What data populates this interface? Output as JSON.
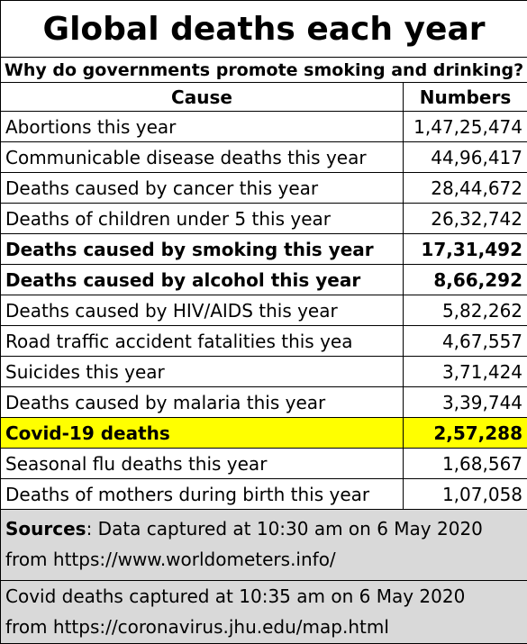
{
  "title": "Global deaths each year",
  "subtitle": "Why do governments promote smoking and drinking?",
  "columns": {
    "cause": "Cause",
    "numbers": "Numbers"
  },
  "rows": [
    {
      "cause": "Abortions this year",
      "number": "1,47,25,474",
      "style": "normal"
    },
    {
      "cause": "Communicable disease deaths this year",
      "number": "44,96,417",
      "style": "normal"
    },
    {
      "cause": "Deaths caused by cancer this year",
      "number": "28,44,672",
      "style": "normal"
    },
    {
      "cause": "Deaths of children under 5 this year",
      "number": "26,32,742",
      "style": "normal"
    },
    {
      "cause": "Deaths caused by smoking this year",
      "number": "17,31,492",
      "style": "bold"
    },
    {
      "cause": "Deaths caused by alcohol this year",
      "number": "8,66,292",
      "style": "bold"
    },
    {
      "cause": "Deaths caused by HIV/AIDS this year",
      "number": "5,82,262",
      "style": "normal"
    },
    {
      "cause": "Road traffic accident fatalities this yea",
      "number": "4,67,557",
      "style": "normal"
    },
    {
      "cause": "Suicides this year",
      "number": "3,71,424",
      "style": "normal"
    },
    {
      "cause": "Deaths caused by malaria this year",
      "number": "3,39,744",
      "style": "normal"
    },
    {
      "cause": "Covid-19 deaths",
      "number": "2,57,288",
      "style": "highlight"
    },
    {
      "cause": "Seasonal flu deaths this year",
      "number": "1,68,567",
      "style": "normal"
    },
    {
      "cause": "Deaths of mothers during birth this year",
      "number": "1,07,058",
      "style": "normal"
    }
  ],
  "sources": {
    "label": "Sources",
    "line1_rest": ": Data captured at 10:30 am on 6 May 2020",
    "line2": "from https://www.worldometers.info/",
    "covid_line1": "Covid deaths captured at 10:35 am on 6 May 2020",
    "covid_line2": "from https://coronavirus.jhu.edu/map.html"
  },
  "colors": {
    "highlight": "#ffff00",
    "source_bg": "#d9d9d9",
    "border": "#000000"
  }
}
